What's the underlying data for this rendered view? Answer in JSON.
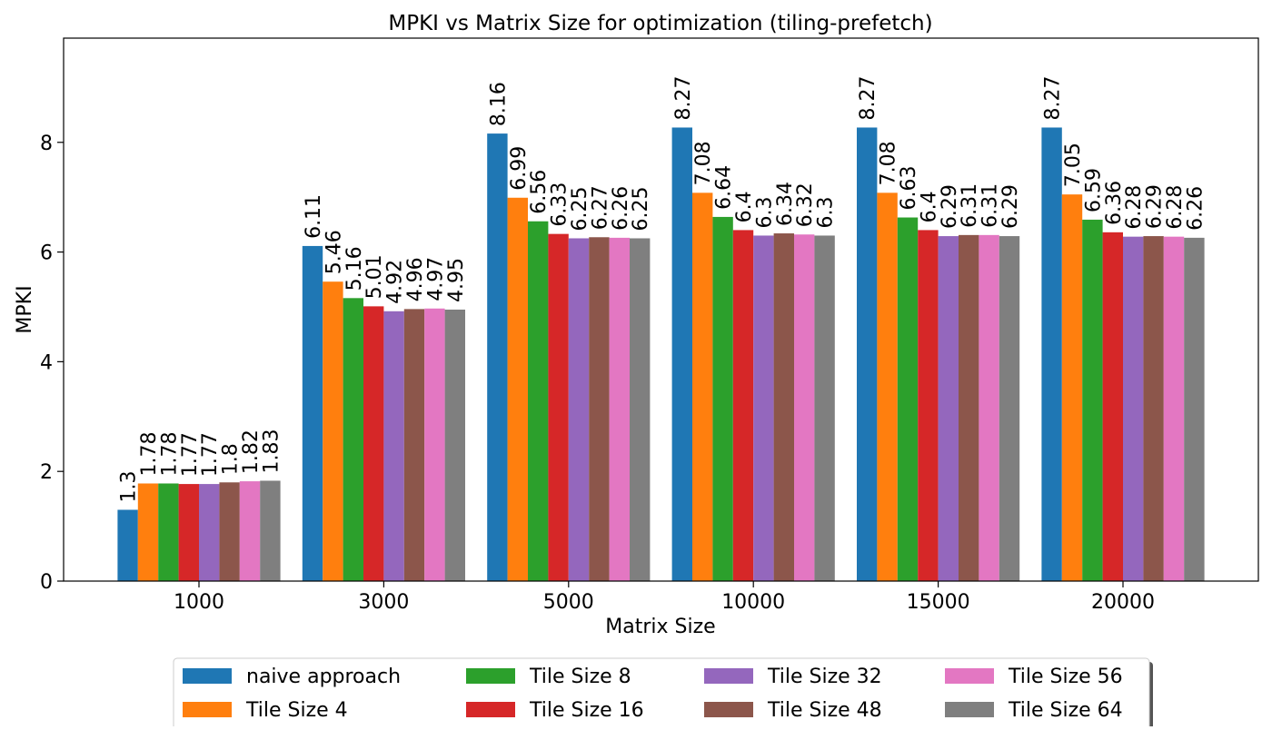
{
  "chart_data": {
    "type": "bar",
    "title": "MPKI vs Matrix Size for optimization (tiling-prefetch)",
    "xlabel": "Matrix Size",
    "ylabel": "MPKI",
    "ylim": [
      0,
      9.9
    ],
    "yticks": [
      0,
      2,
      4,
      6,
      8
    ],
    "categories": [
      "1000",
      "3000",
      "5000",
      "10000",
      "15000",
      "20000"
    ],
    "legend_position": "bottom-center",
    "grid": false,
    "series": [
      {
        "name": "naive approach",
        "color": "#1f77b4",
        "values": [
          1.3,
          6.11,
          8.16,
          8.27,
          8.27,
          8.27
        ]
      },
      {
        "name": "Tile Size 4",
        "color": "#ff7f0e",
        "values": [
          1.78,
          5.46,
          6.99,
          7.08,
          7.08,
          7.05
        ]
      },
      {
        "name": "Tile Size 8",
        "color": "#2ca02c",
        "values": [
          1.78,
          5.16,
          6.56,
          6.64,
          6.63,
          6.59
        ]
      },
      {
        "name": "Tile Size 16",
        "color": "#d62728",
        "values": [
          1.77,
          5.01,
          6.33,
          6.4,
          6.4,
          6.36
        ]
      },
      {
        "name": "Tile Size 32",
        "color": "#9467bd",
        "values": [
          1.77,
          4.92,
          6.25,
          6.3,
          6.29,
          6.28
        ]
      },
      {
        "name": "Tile Size 48",
        "color": "#8c564b",
        "values": [
          1.8,
          4.96,
          6.27,
          6.34,
          6.31,
          6.29
        ]
      },
      {
        "name": "Tile Size 56",
        "color": "#e377c2",
        "values": [
          1.82,
          4.97,
          6.26,
          6.32,
          6.31,
          6.28
        ]
      },
      {
        "name": "Tile Size 64",
        "color": "#7f7f7f",
        "values": [
          1.83,
          4.95,
          6.25,
          6.3,
          6.29,
          6.26
        ]
      }
    ]
  }
}
